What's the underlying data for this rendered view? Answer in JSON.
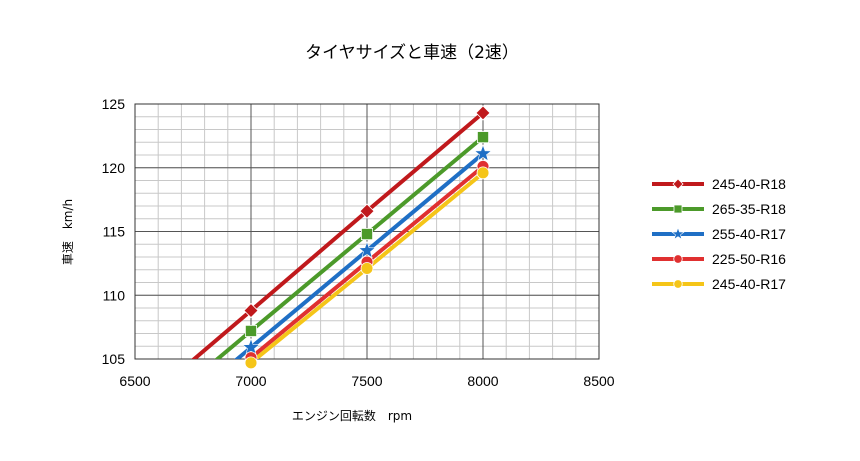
{
  "chart_data": {
    "type": "line",
    "title": "タイヤサイズと車速（2速）",
    "xlabel": "エンジン回転数　rpm",
    "ylabel": "車速　km/h",
    "xlim": [
      6500,
      8500
    ],
    "ylim": [
      105,
      125
    ],
    "x_ticks": [
      6500,
      7000,
      7500,
      8000,
      8500
    ],
    "y_ticks": [
      105,
      110,
      115,
      120,
      125
    ],
    "grid": true,
    "legend_position": "right",
    "series": [
      {
        "name": "245-40-R18",
        "color": "#c0191c",
        "marker": "diamond",
        "x": [
          7000,
          7500,
          8000
        ],
        "y": [
          108.8,
          116.6,
          124.3
        ]
      },
      {
        "name": "265-35-R18",
        "color": "#4c9a2a",
        "marker": "square",
        "x": [
          7000,
          7500,
          8000
        ],
        "y": [
          107.2,
          114.8,
          122.4
        ]
      },
      {
        "name": "255-40-R17",
        "color": "#1f6fc5",
        "marker": "star",
        "x": [
          7000,
          7500,
          8000
        ],
        "y": [
          105.9,
          113.5,
          121.1
        ]
      },
      {
        "name": "225-50-R16",
        "color": "#e03030",
        "marker": "circle",
        "x": [
          7000,
          7500,
          8000
        ],
        "y": [
          105.1,
          112.6,
          120.1
        ]
      },
      {
        "name": "245-40-R17",
        "color": "#f5c518",
        "marker": "circle",
        "x": [
          7000,
          7500,
          8000
        ],
        "y": [
          104.7,
          112.1,
          119.6
        ]
      }
    ]
  }
}
